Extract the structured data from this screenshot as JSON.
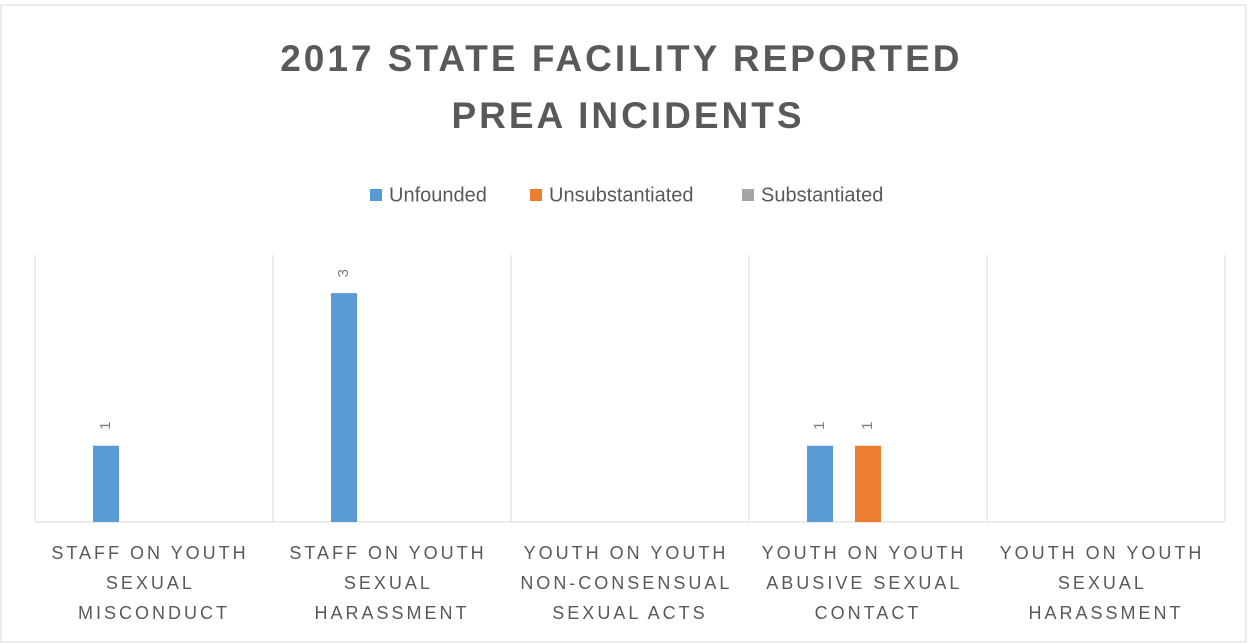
{
  "chart_data": {
    "type": "bar",
    "title": "2017 STATE FACILITY REPORTED PREA INCIDENTS",
    "categories": [
      "STAFF ON YOUTH SEXUAL MISCONDUCT",
      "STAFF ON YOUTH SEXUAL HARASSMENT",
      "YOUTH ON YOUTH NON-CONSENSUAL SEXUAL ACTS",
      "YOUTH ON YOUTH ABUSIVE SEXUAL CONTACT",
      "YOUTH ON YOUTH SEXUAL HARASSMENT"
    ],
    "series": [
      {
        "name": "Unfounded",
        "color": "#5b9bd5",
        "values": [
          1,
          3,
          null,
          1,
          null
        ]
      },
      {
        "name": "Unsubstantiated",
        "color": "#ed7d31",
        "values": [
          null,
          null,
          null,
          1,
          null
        ]
      },
      {
        "name": "Substantiated",
        "color": "#a5a5a5",
        "values": [
          null,
          null,
          null,
          null,
          null
        ]
      }
    ],
    "ylim": [
      0,
      3.5
    ],
    "legend": "top"
  }
}
